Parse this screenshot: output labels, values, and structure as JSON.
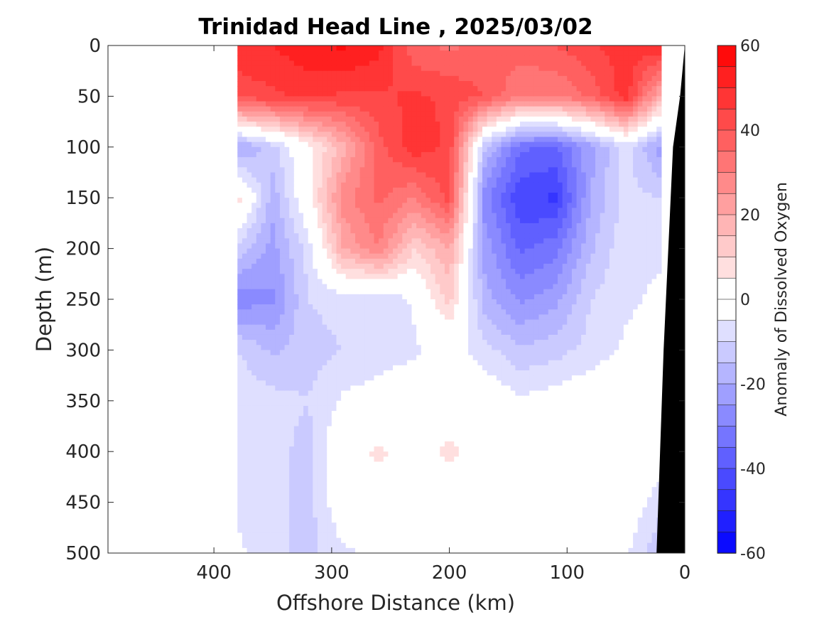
{
  "chart_data": {
    "type": "heatmap",
    "title": "Trinidad Head Line , 2025/03/02",
    "xlabel": "Offshore Distance (km)",
    "ylabel": "Depth (m)",
    "colorbar_label": "Anomaly of Dissolved Oxygen",
    "xlim": [
      490,
      0
    ],
    "ylim": [
      500,
      0
    ],
    "x_ticks": [
      400,
      300,
      200,
      100,
      0
    ],
    "y_ticks": [
      0,
      50,
      100,
      150,
      200,
      250,
      300,
      350,
      400,
      450,
      500
    ],
    "colorbar_range": [
      -60,
      60
    ],
    "colorbar_ticks": [
      60,
      40,
      20,
      0,
      -20,
      -40,
      -60
    ],
    "data_x_range": [
      380,
      22
    ],
    "colors": {
      "positive": "#ff0000",
      "negative": "#0000ff",
      "zero": "#ffffff",
      "bathymetry": "#000000"
    },
    "grid": false,
    "distances_km": [
      380,
      350,
      320,
      290,
      260,
      230,
      200,
      170,
      140,
      110,
      80,
      50,
      22
    ],
    "depths_m": [
      0,
      50,
      100,
      150,
      200,
      250,
      300,
      350,
      400,
      450,
      500
    ],
    "values": [
      [
        48,
        50,
        54,
        56,
        52,
        36,
        34,
        36,
        38,
        40,
        44,
        48,
        50
      ],
      [
        42,
        44,
        46,
        44,
        44,
        46,
        44,
        40,
        30,
        30,
        36,
        48,
        20
      ],
      [
        -22,
        -12,
        2,
        18,
        38,
        48,
        44,
        -14,
        -34,
        -36,
        -22,
        -8,
        -22
      ],
      [
        8,
        -18,
        2,
        28,
        36,
        30,
        42,
        -28,
        -44,
        -46,
        -20,
        -8,
        -10
      ],
      [
        -12,
        -22,
        -8,
        20,
        30,
        10,
        20,
        -22,
        -36,
        -32,
        -16,
        -6,
        -6
      ],
      [
        -28,
        -26,
        -10,
        -8,
        -10,
        -4,
        12,
        -18,
        -26,
        -22,
        -10,
        -6,
        -4
      ],
      [
        -10,
        -16,
        -12,
        -10,
        -8,
        -6,
        -2,
        -8,
        -14,
        -12,
        -8,
        -4,
        -2
      ],
      [
        -6,
        -8,
        -10,
        -4,
        -2,
        0,
        2,
        0,
        -4,
        -2,
        0,
        0,
        0
      ],
      [
        -6,
        -8,
        -12,
        2,
        6,
        2,
        6,
        2,
        0,
        2,
        0,
        0,
        0
      ],
      [
        -6,
        -8,
        -12,
        0,
        2,
        0,
        2,
        0,
        0,
        0,
        0,
        0,
        -8
      ],
      [
        -4,
        -8,
        -12,
        -6,
        -4,
        0,
        -4,
        -4,
        -2,
        -4,
        -2,
        -4,
        -14
      ]
    ],
    "bathymetry_km_at_depth": [
      [
        0,
        0
      ],
      [
        50,
        4
      ],
      [
        100,
        10
      ],
      [
        200,
        14
      ],
      [
        300,
        18
      ],
      [
        400,
        21
      ],
      [
        500,
        24
      ]
    ]
  }
}
